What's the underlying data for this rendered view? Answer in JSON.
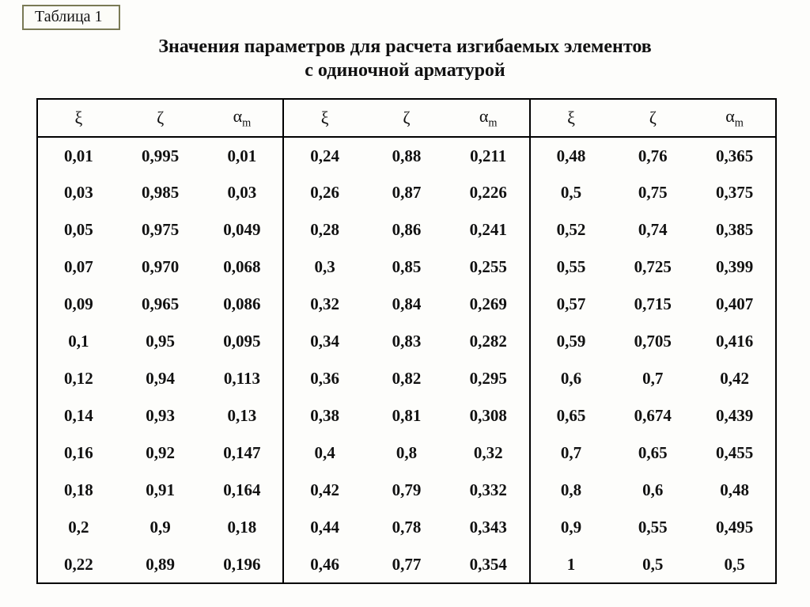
{
  "tab_label": "Таблица 1",
  "title_line1": "Значения параметров для расчета изгибаемых элементов",
  "title_line2": "с одиночной арматурой",
  "headers": {
    "xi": "ξ",
    "zeta": "ζ",
    "alpha": "α",
    "alpha_sub": "m"
  },
  "table": {
    "type": "table",
    "columns": [
      "ξ",
      "ζ",
      "αm",
      "ξ",
      "ζ",
      "αm",
      "ξ",
      "ζ",
      "αm"
    ],
    "rows": [
      [
        "0,01",
        "0,995",
        "0,01",
        "0,24",
        "0,88",
        "0,211",
        "0,48",
        "0,76",
        "0,365"
      ],
      [
        "0,03",
        "0,985",
        "0,03",
        "0,26",
        "0,87",
        "0,226",
        "0,5",
        "0,75",
        "0,375"
      ],
      [
        "0,05",
        "0,975",
        "0,049",
        "0,28",
        "0,86",
        "0,241",
        "0,52",
        "0,74",
        "0,385"
      ],
      [
        "0,07",
        "0,970",
        "0,068",
        "0,3",
        "0,85",
        "0,255",
        "0,55",
        "0,725",
        "0,399"
      ],
      [
        "0,09",
        "0,965",
        "0,086",
        "0,32",
        "0,84",
        "0,269",
        "0,57",
        "0,715",
        "0,407"
      ],
      [
        "0,1",
        "0,95",
        "0,095",
        "0,34",
        "0,83",
        "0,282",
        "0,59",
        "0,705",
        "0,416"
      ],
      [
        "0,12",
        "0,94",
        "0,113",
        "0,36",
        "0,82",
        "0,295",
        "0,6",
        "0,7",
        "0,42"
      ],
      [
        "0,14",
        "0,93",
        "0,13",
        "0,38",
        "0,81",
        "0,308",
        "0,65",
        "0,674",
        "0,439"
      ],
      [
        "0,16",
        "0,92",
        "0,147",
        "0,4",
        "0,8",
        "0,32",
        "0,7",
        "0,65",
        "0,455"
      ],
      [
        "0,18",
        "0,91",
        "0,164",
        "0,42",
        "0,79",
        "0,332",
        "0,8",
        "0,6",
        "0,48"
      ],
      [
        "0,2",
        "0,9",
        "0,18",
        "0,44",
        "0,78",
        "0,343",
        "0,9",
        "0,55",
        "0,495"
      ],
      [
        "0,22",
        "0,89",
        "0,196",
        "0,46",
        "0,77",
        "0,354",
        "1",
        "0,5",
        "0,5"
      ]
    ],
    "border_color": "#000000",
    "background_color": "#fdfdfb",
    "font_family": "Times New Roman",
    "cell_fontsize": 21,
    "header_fontsize": 22,
    "font_weight": "bold",
    "col_widths_pct": [
      11.1,
      11.1,
      11.1,
      11.1,
      11.1,
      11.1,
      11.1,
      11.1,
      11.1
    ]
  }
}
